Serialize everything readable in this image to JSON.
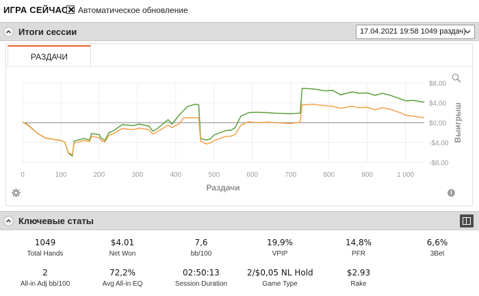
{
  "app": {
    "title": "ИГРА СЕЙЧАС",
    "auto_update": {
      "label": "Автоматическое обновление",
      "checked": true
    }
  },
  "session_results": {
    "title": "Итоги сессии",
    "session_select": {
      "value": "17.04.2021 19:58 1049 раздач)"
    },
    "tabs": [
      {
        "label": "РАЗДАЧИ",
        "active": true
      }
    ]
  },
  "chart_data": {
    "type": "line",
    "title": "",
    "xlabel": "Раздачи",
    "ylabel": "Выигрыш",
    "xlim": [
      0,
      1049
    ],
    "ylim": [
      -8,
      8
    ],
    "xticks": [
      "0",
      "100",
      "200",
      "300",
      "400",
      "500",
      "600",
      "700",
      "800",
      "900",
      "1 000"
    ],
    "yticks": [
      "$8,00",
      "$4,00",
      "$0,00",
      "-$4,00",
      "-$8,00"
    ],
    "grid": true,
    "series": [
      {
        "color": "#5a9e3a",
        "points": [
          [
            0,
            0.1
          ],
          [
            10,
            -0.2
          ],
          [
            40,
            -2.2
          ],
          [
            60,
            -3.1
          ],
          [
            100,
            -3.6
          ],
          [
            110,
            -3.9
          ],
          [
            120,
            -6.2
          ],
          [
            130,
            -6.7
          ],
          [
            135,
            -3.7
          ],
          [
            160,
            -3.2
          ],
          [
            175,
            -3.5
          ],
          [
            180,
            -2.2
          ],
          [
            200,
            -2.4
          ],
          [
            205,
            -3.1
          ],
          [
            215,
            -3.6
          ],
          [
            225,
            -2.1
          ],
          [
            240,
            -1.5
          ],
          [
            260,
            -0.4
          ],
          [
            290,
            -0.6
          ],
          [
            305,
            -0.3
          ],
          [
            330,
            -0.7
          ],
          [
            340,
            -1.7
          ],
          [
            350,
            -1.3
          ],
          [
            380,
            0.6
          ],
          [
            390,
            -0.3
          ],
          [
            410,
            1.6
          ],
          [
            420,
            2.4
          ],
          [
            430,
            3.2
          ],
          [
            450,
            3.7
          ],
          [
            460,
            3.6
          ],
          [
            465,
            -3.2
          ],
          [
            480,
            -3.5
          ],
          [
            490,
            -3.3
          ],
          [
            500,
            -2.5
          ],
          [
            530,
            -1.6
          ],
          [
            545,
            -1.5
          ],
          [
            555,
            -1.0
          ],
          [
            570,
            1.3
          ],
          [
            590,
            2.0
          ],
          [
            610,
            2.1
          ],
          [
            640,
            2.0
          ],
          [
            660,
            1.9
          ],
          [
            700,
            1.8
          ],
          [
            725,
            1.9
          ],
          [
            730,
            6.9
          ],
          [
            760,
            6.8
          ],
          [
            790,
            6.4
          ],
          [
            810,
            6.5
          ],
          [
            830,
            5.6
          ],
          [
            860,
            6.2
          ],
          [
            880,
            5.9
          ],
          [
            900,
            6.0
          ],
          [
            920,
            5.5
          ],
          [
            940,
            5.9
          ],
          [
            960,
            5.5
          ],
          [
            990,
            4.7
          ],
          [
            1000,
            4.4
          ],
          [
            1020,
            4.5
          ],
          [
            1049,
            4.1
          ]
        ]
      },
      {
        "color": "#f5a04a",
        "points": [
          [
            0,
            0.1
          ],
          [
            10,
            -0.3
          ],
          [
            40,
            -2.2
          ],
          [
            60,
            -3.1
          ],
          [
            100,
            -3.6
          ],
          [
            110,
            -3.9
          ],
          [
            120,
            -6.1
          ],
          [
            130,
            -6.4
          ],
          [
            135,
            -4.1
          ],
          [
            160,
            -3.6
          ],
          [
            175,
            -3.8
          ],
          [
            180,
            -2.8
          ],
          [
            200,
            -3.0
          ],
          [
            205,
            -3.6
          ],
          [
            215,
            -3.9
          ],
          [
            225,
            -2.6
          ],
          [
            240,
            -2.1
          ],
          [
            260,
            -1.2
          ],
          [
            290,
            -1.4
          ],
          [
            305,
            -1.1
          ],
          [
            330,
            -1.4
          ],
          [
            340,
            -2.3
          ],
          [
            350,
            -1.9
          ],
          [
            380,
            -0.5
          ],
          [
            390,
            -1.0
          ],
          [
            410,
            -0.2
          ],
          [
            420,
            0.9
          ],
          [
            430,
            1.0
          ],
          [
            450,
            1.0
          ],
          [
            460,
            1.0
          ],
          [
            465,
            -3.7
          ],
          [
            480,
            -4.3
          ],
          [
            490,
            -4.1
          ],
          [
            500,
            -3.6
          ],
          [
            530,
            -2.8
          ],
          [
            545,
            -2.7
          ],
          [
            555,
            -2.4
          ],
          [
            570,
            -0.5
          ],
          [
            590,
            0.2
          ],
          [
            610,
            0.0
          ],
          [
            640,
            0.1
          ],
          [
            660,
            0.0
          ],
          [
            700,
            -0.2
          ],
          [
            725,
            0.1
          ],
          [
            730,
            3.6
          ],
          [
            760,
            3.7
          ],
          [
            790,
            3.4
          ],
          [
            810,
            3.3
          ],
          [
            830,
            2.9
          ],
          [
            860,
            3.3
          ],
          [
            880,
            3.0
          ],
          [
            900,
            3.1
          ],
          [
            920,
            2.6
          ],
          [
            940,
            3.0
          ],
          [
            960,
            2.7
          ],
          [
            990,
            1.9
          ],
          [
            1000,
            1.5
          ],
          [
            1020,
            1.3
          ],
          [
            1049,
            1.0
          ]
        ]
      }
    ]
  },
  "key_stats": {
    "title": "Ключевые статы",
    "rows": [
      [
        {
          "value": "1049",
          "label": "Total Hands"
        },
        {
          "value": "$4.01",
          "label": "Net Won"
        },
        {
          "value": "7,6",
          "label": "bb/100"
        },
        {
          "value": "19,9%",
          "label": "VPIP"
        },
        {
          "value": "14,8%",
          "label": "PFR"
        },
        {
          "value": "6,6%",
          "label": "3Bet"
        }
      ],
      [
        {
          "value": "2",
          "label": "All-in Adj bb/100"
        },
        {
          "value": "72,2%",
          "label": "Avg All-in EQ"
        },
        {
          "value": "02:50:13",
          "label": "Session Duration"
        },
        {
          "value": "2/$0,05 NL Hold",
          "label": "Game Type"
        },
        {
          "value": "$2.93",
          "label": "Rake"
        }
      ]
    ]
  },
  "icons": {
    "settings": "gear-icon",
    "zoom": "magnifier-icon",
    "info": "info-icon",
    "collapse": "chevron-up-icon",
    "layout": "layout-split-icon"
  }
}
